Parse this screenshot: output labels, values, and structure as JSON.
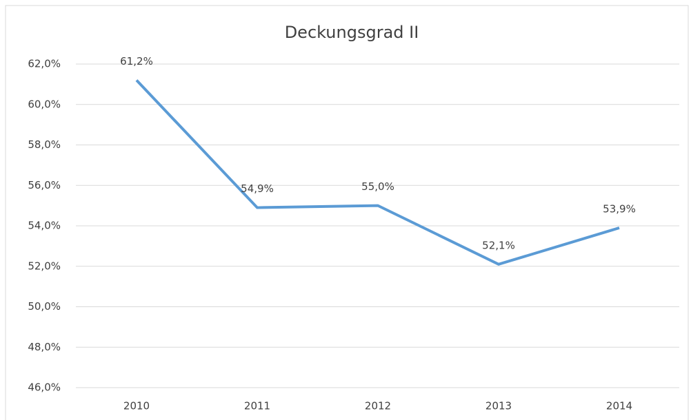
{
  "chart_data": {
    "type": "line",
    "title": "Deckungsgrad II",
    "categories": [
      "2010",
      "2011",
      "2012",
      "2013",
      "2014"
    ],
    "values": [
      61.2,
      54.9,
      55.0,
      52.1,
      53.9
    ],
    "value_labels": [
      "61,2%",
      "54,9%",
      "55,0%",
      "52,1%",
      "53,9%"
    ],
    "color": "#5b9bd5",
    "ylim": [
      46,
      62
    ],
    "yticks": [
      {
        "value": 46,
        "label": "46,0%"
      },
      {
        "value": 48,
        "label": "48,0%"
      },
      {
        "value": 50,
        "label": "50,0%"
      },
      {
        "value": 52,
        "label": "52,0%"
      },
      {
        "value": 54,
        "label": "54,0%"
      },
      {
        "value": 56,
        "label": "56,0%"
      },
      {
        "value": 58,
        "label": "58,0%"
      },
      {
        "value": 60,
        "label": "60,0%"
      },
      {
        "value": 62,
        "label": "62,0%"
      }
    ],
    "grid": true
  }
}
